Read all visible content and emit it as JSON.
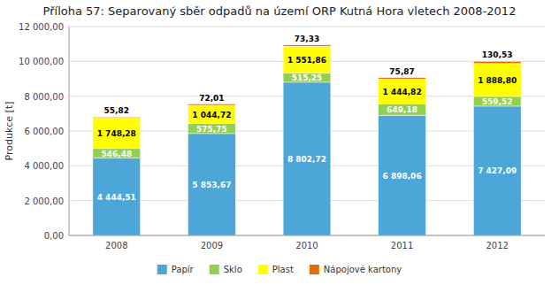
{
  "chart_data": {
    "type": "bar",
    "stacked": true,
    "data_labels": true,
    "grid": true,
    "legend": "bottom",
    "title": "Příloha 57: Separovaný sběr odpadů na území ORP Kutná Hora vletech 2008-2012",
    "ylabel": "Produkce [t]",
    "categories": [
      "2008",
      "2009",
      "2010",
      "2011",
      "2012"
    ],
    "series": [
      {
        "name": "Papír",
        "color": "#4da6d8",
        "values": [
          4444.51,
          5853.67,
          8802.72,
          6898.06,
          7427.09
        ],
        "value_labels": [
          "4 444,51",
          "5 853,67",
          "8 802,72",
          "6 898,06",
          "7 427,09"
        ]
      },
      {
        "name": "Sklo",
        "color": "#92d050",
        "values": [
          546.48,
          575.75,
          515.25,
          649.18,
          559.52
        ],
        "value_labels": [
          "546,48",
          "575,75",
          "515,25",
          "649,18",
          "559,52"
        ]
      },
      {
        "name": "Plast",
        "color": "#ffff00",
        "values": [
          1748.28,
          1044.72,
          1551.86,
          1444.82,
          1888.8
        ],
        "value_labels": [
          "1 748,28",
          "1 044,72",
          "1 551,86",
          "1 444,82",
          "1 888,80"
        ]
      },
      {
        "name": "Nápojové kartony",
        "color": "#e36c09",
        "values": [
          55.82,
          72.01,
          73.33,
          75.87,
          130.53
        ],
        "value_labels": [
          "55,82",
          "72,01",
          "73,33",
          "75,87",
          "130,53"
        ]
      }
    ],
    "ylim": [
      0,
      12000
    ],
    "yticks": [
      {
        "value": 0,
        "label": "0,00"
      },
      {
        "value": 2000,
        "label": "2 000,00"
      },
      {
        "value": 4000,
        "label": "4 000,00"
      },
      {
        "value": 6000,
        "label": "6 000,00"
      },
      {
        "value": 8000,
        "label": "8 000,00"
      },
      {
        "value": 10000,
        "label": "10 000,00"
      },
      {
        "value": 12000,
        "label": "12 000,00"
      }
    ]
  }
}
